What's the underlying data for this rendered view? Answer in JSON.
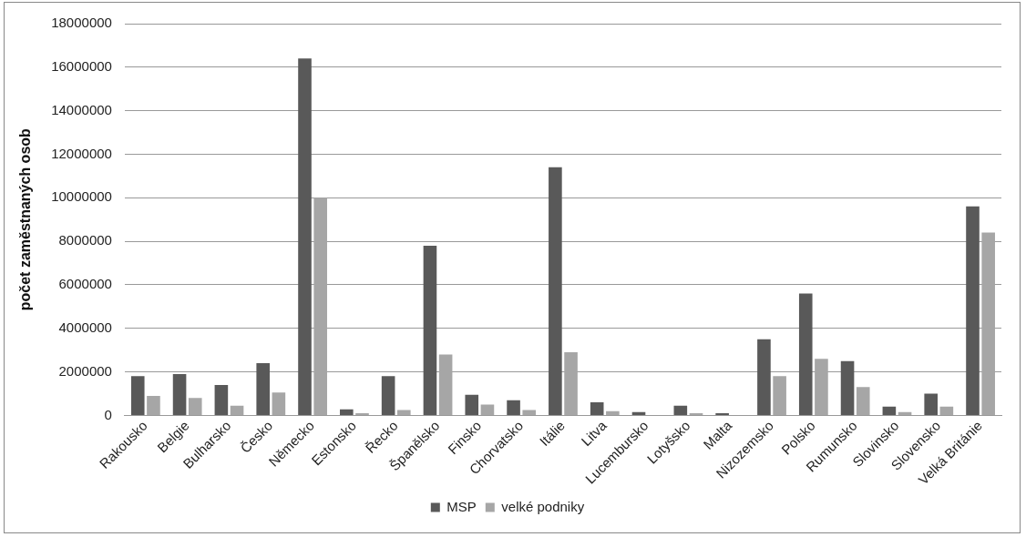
{
  "chart_data": {
    "type": "bar",
    "ylabel": "počet zaměstnaných osob",
    "categories": [
      "Rakousko",
      "Belgie",
      "Bulharsko",
      "Česko",
      "Německo",
      "Estonsko",
      "Řecko",
      "Španělsko",
      "Finsko",
      "Chorvatsko",
      "Itálie",
      "Litva",
      "Lucembursko",
      "Lotyšsko",
      "Malta",
      "Nizozemsko",
      "Polsko",
      "Rumunsko",
      "Slovinsko",
      "Slovensko",
      "Velká Británie"
    ],
    "series": [
      {
        "name": "MSP",
        "color": "#595959",
        "values": [
          1800000,
          1900000,
          1400000,
          2400000,
          16400000,
          280000,
          1800000,
          7800000,
          950000,
          700000,
          11400000,
          600000,
          150000,
          450000,
          100000,
          3500000,
          5600000,
          2500000,
          400000,
          1000000,
          9600000
        ]
      },
      {
        "name": "velké podniky",
        "color": "#a6a6a6",
        "values": [
          900000,
          800000,
          450000,
          1050000,
          10000000,
          100000,
          250000,
          2800000,
          500000,
          250000,
          2900000,
          200000,
          null,
          100000,
          null,
          1800000,
          2600000,
          1300000,
          150000,
          400000,
          8400000
        ]
      }
    ],
    "ylim": [
      0,
      18000000
    ],
    "yticks": [
      0,
      2000000,
      4000000,
      6000000,
      8000000,
      10000000,
      12000000,
      14000000,
      16000000,
      18000000
    ],
    "grid": "y",
    "legend": "bottom"
  }
}
